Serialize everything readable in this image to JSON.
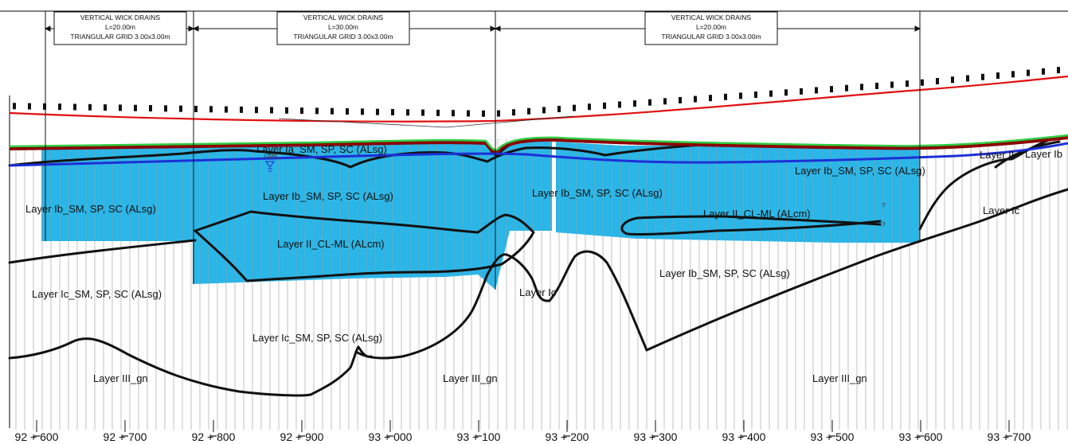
{
  "drain_zones": [
    {
      "line1": "VERTICAL WICK DRAINS",
      "line2": "L=20.00m",
      "line3": "TRIANGULAR GRID 3.00x3.00m"
    },
    {
      "line1": "VERTICAL WICK DRAINS",
      "line2": "L=30.00m",
      "line3": "TRIANGULAR GRID 3.00x3.00m"
    },
    {
      "line1": "VERTICAL WICK DRAINS",
      "line2": "L=20.00m",
      "line3": "TRIANGULAR GRID 3.00x3.00m"
    }
  ],
  "layer_labels": [
    "Layer Ia_SM, SP, SC (ALsg)",
    "Layer Ib_SM, SP, SC (ALsg)",
    "Layer Ib_SM, SP, SC (ALsg)",
    "Layer Ib_SM, SP, SC (ALsg)",
    "Layer Ib_SM, SP, SC (ALsg)",
    "Layer Ib_SM, SP, SC (ALsg)",
    "Layer II_CL-ML (ALcm)",
    "Layer II_CL-ML (ALcm)",
    "Layer Ic_SM, SP, SC (ALsg)",
    "Layer Ic_SM, SP, SC (ALsg)",
    "Layer Ic",
    "Layer Ic",
    "Layer III_gn",
    "Layer III_gn",
    "Layer III_gn",
    "Layer Ib",
    "Layer II",
    "?",
    "?"
  ],
  "chainages": [
    "92 + 600",
    "92 + 700",
    "92 + 800",
    "92 + 900",
    "93 + 000",
    "93 + 100",
    "93 + 200",
    "93 + 300",
    "93 + 400",
    "93 + 500",
    "93 + 600",
    "93 + 700"
  ],
  "water_table_marker": "GWL",
  "colors": {
    "treated_zone": "#29b6e8",
    "design_line": "#e01010",
    "ground_surface": "#2ecc40",
    "groundwater": "#1d2fd6",
    "boundary": "#111111"
  }
}
